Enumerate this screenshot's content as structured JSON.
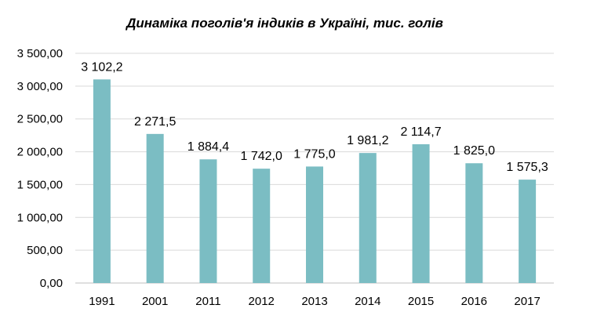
{
  "chart_data": {
    "type": "bar",
    "title": "Динаміка поголів'я індиків в Україні, тис. голів",
    "categories": [
      "1991",
      "2001",
      "2011",
      "2012",
      "2013",
      "2014",
      "2015",
      "2016",
      "2017"
    ],
    "values": [
      3102.2,
      2271.5,
      1884.4,
      1742.0,
      1775.0,
      1981.2,
      2114.7,
      1825.0,
      1575.3
    ],
    "data_labels": [
      "3 102,2",
      "2 271,5",
      "1 884,4",
      "1 742,0",
      "1 775,0",
      "1 981,2",
      "2 114,7",
      "1 825,0",
      "1 575,3"
    ],
    "y_ticks": [
      "0,00",
      "500,00",
      "1 000,00",
      "1 500,00",
      "2 000,00",
      "2 500,00",
      "3 000,00",
      "3 500,00"
    ],
    "xlabel": "",
    "ylabel": "",
    "ylim": [
      0,
      3500
    ],
    "grid": true,
    "legend": "none",
    "bar_color": "#7bbdc3"
  }
}
